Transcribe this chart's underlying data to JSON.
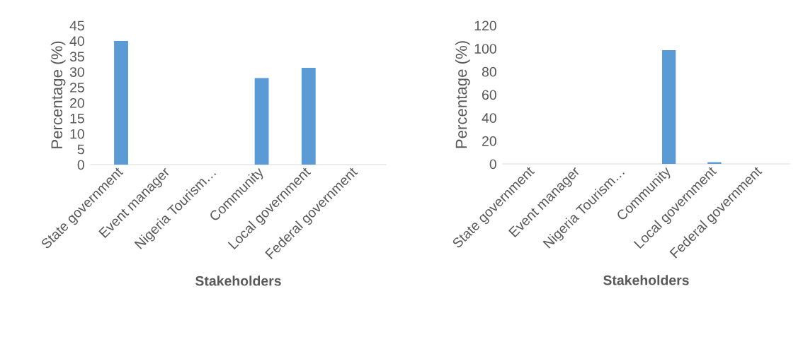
{
  "chart_data": [
    {
      "type": "bar",
      "xlabel": "Stakeholders",
      "ylabel": "Percentage (%)",
      "categories": [
        "State government",
        "Event manager",
        "Nigeria Tourism…",
        "Community",
        "Local government",
        "Federal government"
      ],
      "values": [
        40,
        0,
        0,
        28,
        31.3,
        0
      ],
      "color": "#5b9bd5",
      "ylim": [
        0,
        45
      ],
      "yticks": [
        0,
        5,
        10,
        15,
        20,
        25,
        30,
        35,
        40,
        45
      ],
      "grid": false,
      "legend": false
    },
    {
      "type": "bar",
      "xlabel": "Stakeholders",
      "ylabel": "Percentage (%)",
      "categories": [
        "State government",
        "Event manager",
        "Nigeria Tourism…",
        "Community",
        "Local government",
        "Federal government"
      ],
      "values": [
        0,
        0,
        0,
        98.5,
        1.5,
        0
      ],
      "color": "#5b9bd5",
      "ylim": [
        0,
        120
      ],
      "yticks": [
        0,
        20,
        40,
        60,
        80,
        100,
        120
      ],
      "grid": false,
      "legend": false
    }
  ]
}
